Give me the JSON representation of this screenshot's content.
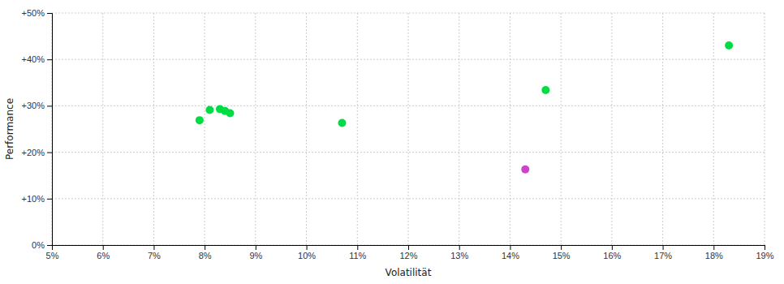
{
  "chart_data": {
    "type": "scatter",
    "xlabel": "Volatilität",
    "ylabel": "Performance",
    "xlim": [
      0.05,
      0.19
    ],
    "ylim": [
      0.0,
      0.5
    ],
    "xticks": [
      {
        "value": 0.05,
        "label": "5%"
      },
      {
        "value": 0.06,
        "label": "6%"
      },
      {
        "value": 0.07,
        "label": "7%"
      },
      {
        "value": 0.08,
        "label": "8%"
      },
      {
        "value": 0.09,
        "label": "9%"
      },
      {
        "value": 0.1,
        "label": "10%"
      },
      {
        "value": 0.11,
        "label": "11%"
      },
      {
        "value": 0.12,
        "label": "12%"
      },
      {
        "value": 0.13,
        "label": "13%"
      },
      {
        "value": 0.14,
        "label": "14%"
      },
      {
        "value": 0.15,
        "label": "15%"
      },
      {
        "value": 0.16,
        "label": "16%"
      },
      {
        "value": 0.17,
        "label": "17%"
      },
      {
        "value": 0.18,
        "label": "18%"
      },
      {
        "value": 0.19,
        "label": "19%"
      }
    ],
    "yticks": [
      {
        "value": 0.0,
        "label": "0%"
      },
      {
        "value": 0.1,
        "label": "+10%"
      },
      {
        "value": 0.2,
        "label": "+20%"
      },
      {
        "value": 0.3,
        "label": "+30%"
      },
      {
        "value": 0.4,
        "label": "+40%"
      },
      {
        "value": 0.5,
        "label": "+50%"
      }
    ],
    "grid": true,
    "series": [
      {
        "color": "#00dd44",
        "x": [
          0.079,
          0.081,
          0.083,
          0.084,
          0.085,
          0.107,
          0.147,
          0.183
        ],
        "values": [
          0.269,
          0.291,
          0.293,
          0.289,
          0.284,
          0.263,
          0.334,
          0.43
        ]
      },
      {
        "color": "#cc44cc",
        "x": [
          0.143
        ],
        "values": [
          0.163
        ]
      }
    ]
  }
}
